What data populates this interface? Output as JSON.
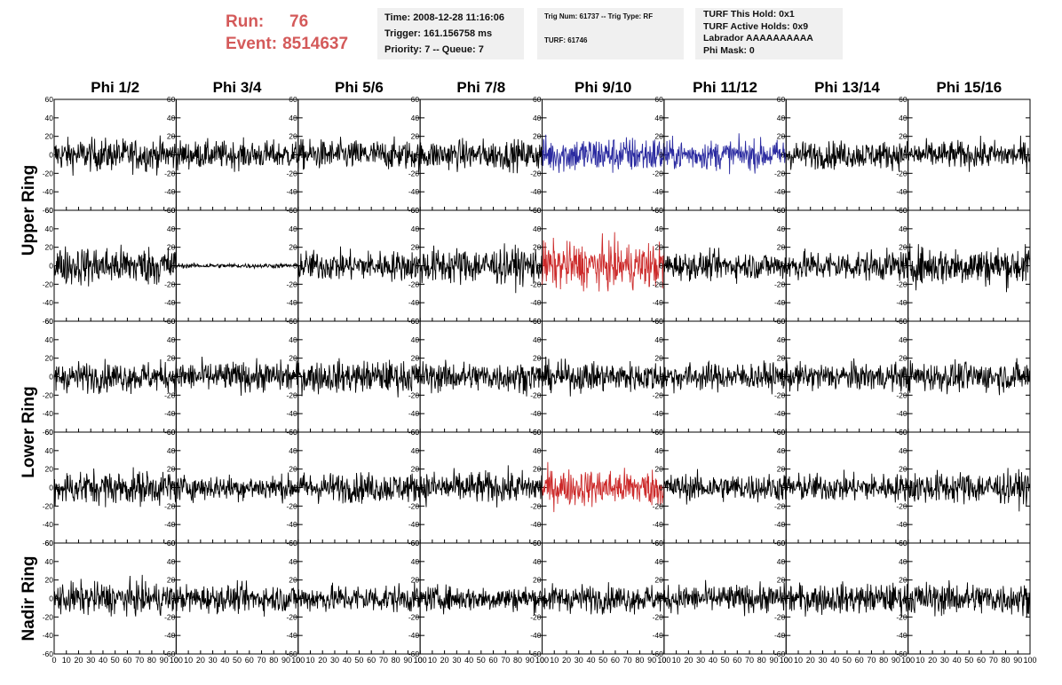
{
  "run_info": {
    "run_label": "Run:",
    "run_value": "76",
    "event_label": "Event:",
    "event_value": "8514637",
    "color": "#d45a5a"
  },
  "info_box_1": {
    "time": "Time: 2008-12-28 11:16:06",
    "trigger": "Trigger: 161.156758 ms",
    "priority": "Priority: 7 -- Queue: 7"
  },
  "info_box_2": {
    "trig": "Trig Num: 61737 -- Trig Type: RF",
    "turf": "TURF: 61746"
  },
  "info_box_3": {
    "hold": "TURF This Hold: 0x1",
    "active": "TURF Active Holds: 0x9",
    "labrador": "Labrador AAAAAAAAAA",
    "mask": "Phi Mask: 0"
  },
  "chart_data": {
    "type": "line",
    "columns": [
      "Phi 1/2",
      "Phi 3/4",
      "Phi 5/6",
      "Phi 7/8",
      "Phi 9/10",
      "Phi 11/12",
      "Phi 13/14",
      "Phi 15/16"
    ],
    "ring_labels": [
      "Upper Ring",
      "Lower Ring",
      "Nadir Ring"
    ],
    "rows_per_ring": [
      2,
      2,
      1
    ],
    "x_range": [
      0,
      100
    ],
    "y_range": [
      -60,
      60
    ],
    "x_ticks": [
      0,
      10,
      20,
      30,
      40,
      50,
      60,
      70,
      80,
      90,
      100
    ],
    "y_ticks": [
      -60,
      -40,
      -20,
      0,
      20,
      40,
      60
    ],
    "x_tick_labels": [
      "0",
      "10",
      "20",
      "30",
      "40",
      "50",
      "60",
      "70",
      "80",
      "90",
      "100"
    ],
    "y_tick_labels": [
      "-60",
      "-40",
      "-20",
      "0",
      "20",
      "40",
      "60"
    ],
    "samples_per_trace": 260,
    "default_color": "#000000",
    "highlights": [
      {
        "row": 0,
        "col": 4,
        "color": "#2a2aa0"
      },
      {
        "row": 0,
        "col": 5,
        "color": "#2a2aa0"
      },
      {
        "row": 1,
        "col": 4,
        "color": "#cc2a2a"
      },
      {
        "row": 3,
        "col": 4,
        "color": "#cc2a2a"
      }
    ],
    "amplitudes": [
      [
        14,
        12,
        13,
        13,
        16,
        13,
        12,
        12
      ],
      [
        17,
        2,
        13,
        16,
        20,
        12,
        13,
        17
      ],
      [
        13,
        13,
        14,
        13,
        13,
        12,
        12,
        13
      ],
      [
        15,
        11,
        13,
        14,
        16,
        12,
        12,
        14
      ],
      [
        14,
        12,
        12,
        11,
        12,
        12,
        13,
        14
      ]
    ]
  }
}
